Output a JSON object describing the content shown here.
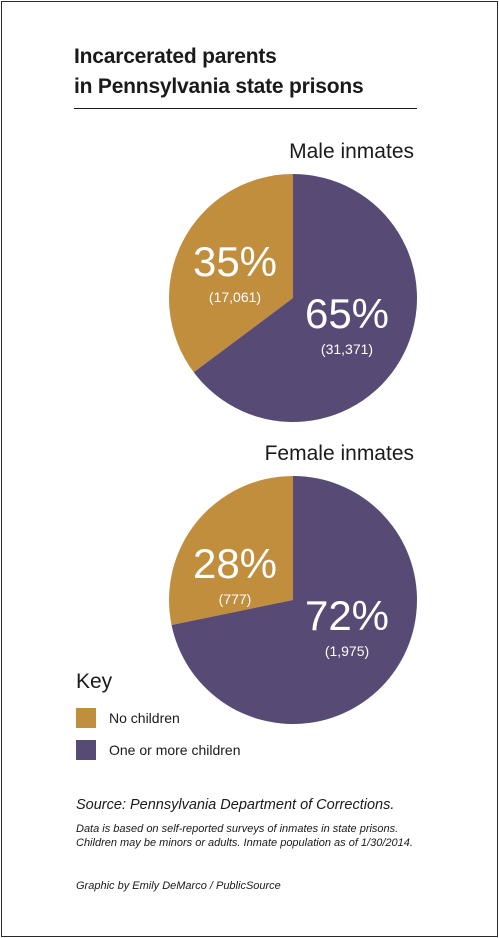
{
  "title_line1": "Incarcerated parents",
  "title_line2": "in Pennsylvania state prisons",
  "colors": {
    "no_children": "#c18e3d",
    "one_or_more": "#574a74"
  },
  "chart_data": [
    {
      "type": "pie",
      "title": "Male inmates",
      "slices": [
        {
          "label": "No children",
          "percent_label": "35%",
          "count_label": "(17,061)",
          "value": 17061
        },
        {
          "label": "One or more children",
          "percent_label": "65%",
          "count_label": "(31,371)",
          "value": 31371
        }
      ]
    },
    {
      "type": "pie",
      "title": "Female inmates",
      "slices": [
        {
          "label": "No children",
          "percent_label": "28%",
          "count_label": "(777)",
          "value": 777
        },
        {
          "label": "One or more children",
          "percent_label": "72%",
          "count_label": "(1,975)",
          "value": 1975
        }
      ]
    }
  ],
  "key": {
    "title": "Key",
    "items": [
      {
        "label": "No children"
      },
      {
        "label": "One or more children"
      }
    ]
  },
  "source": "Source: Pennsylvania Department of Corrections.",
  "note": "Data is based on self-reported surveys of inmates in state prisons. Children may be minors or adults. Inmate population as of 1/30/2014.",
  "credit": "Graphic by Emily DeMarco / PublicSource"
}
